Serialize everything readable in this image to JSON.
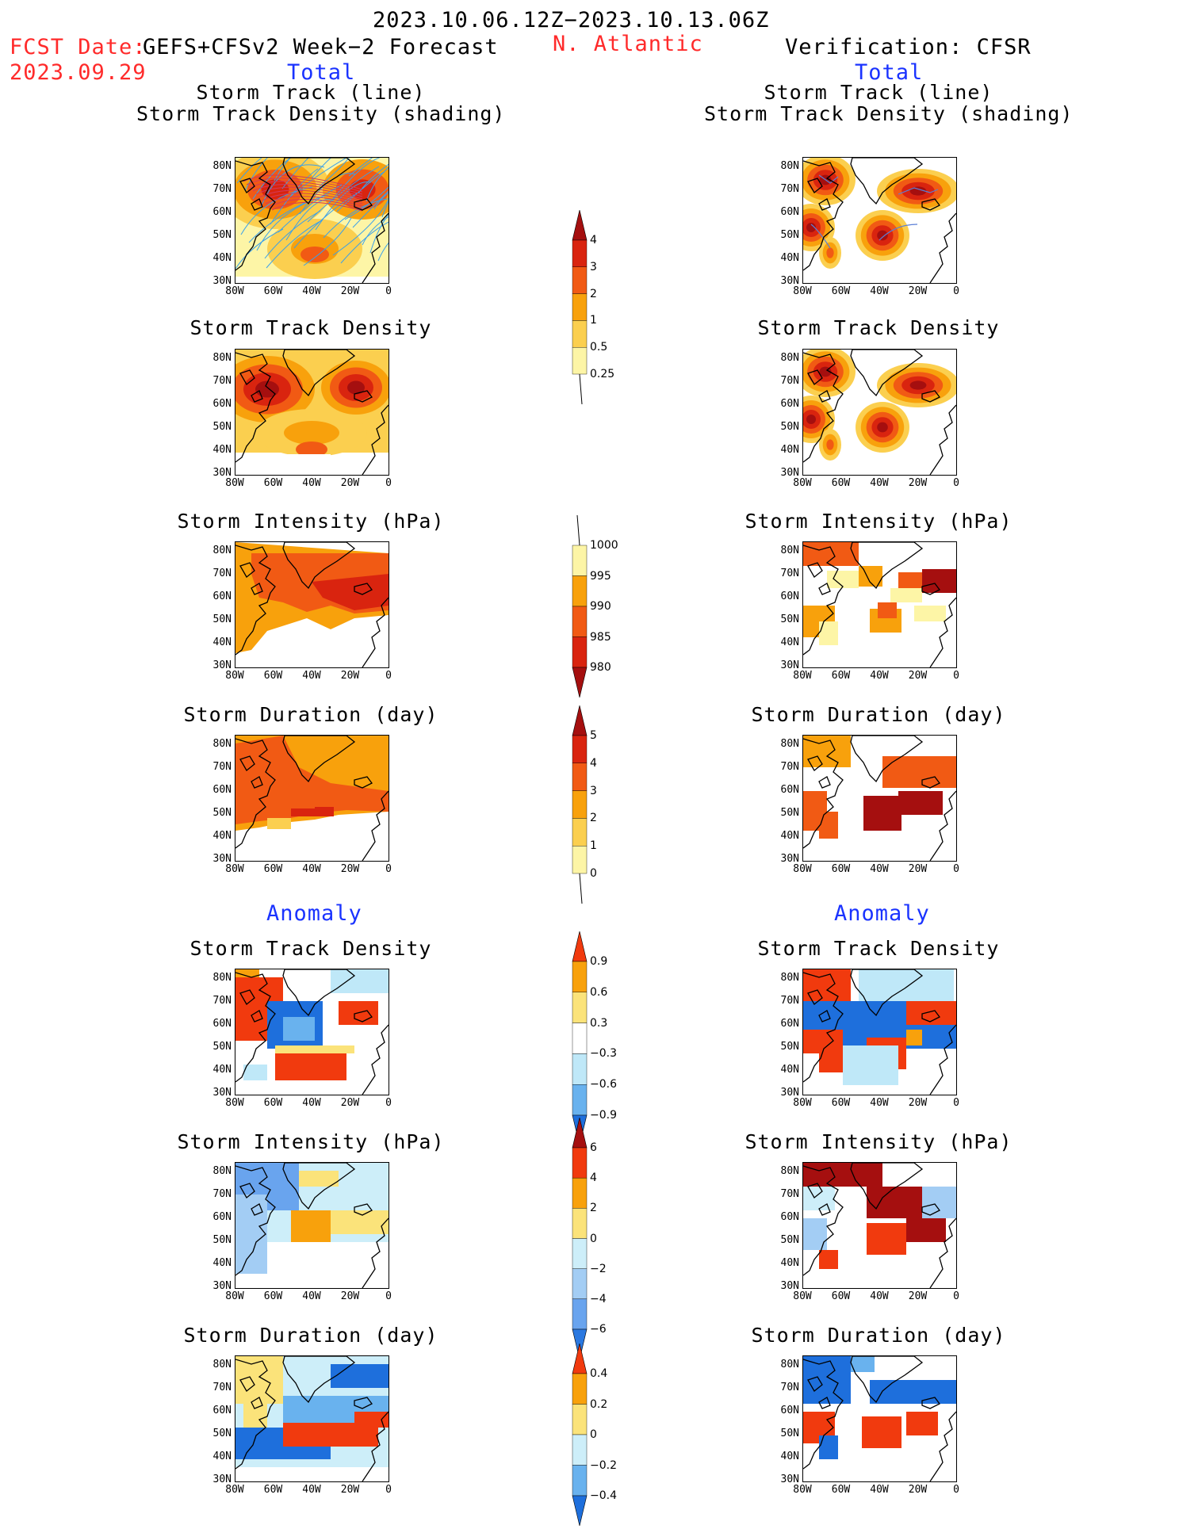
{
  "header": {
    "period": "2023.10.06.12Z−2023.10.13.06Z",
    "fcst_label": "FCST Date:",
    "model": "GEFS+CFSv2 Week−2 Forecast",
    "fcst_date": "2023.09.29",
    "region": "N. Atlantic",
    "verification": "Verification: CFSR"
  },
  "sections": {
    "total": "Total",
    "anomaly": "Anomaly"
  },
  "titles": {
    "track_line_1": "Storm Track (line)",
    "track_line_2": "Storm Track Density (shading)",
    "density": "Storm Track Density",
    "intensity": "Storm Intensity (hPa)",
    "duration": "Storm Duration (day)"
  },
  "axes": {
    "lat": [
      "80N",
      "70N",
      "60N",
      "50N",
      "40N",
      "30N"
    ],
    "lon": [
      "80W",
      "60W",
      "40W",
      "20W",
      "0"
    ]
  },
  "colorbars": {
    "density_total": {
      "labels": [
        "4",
        "3",
        "2",
        "1",
        "0.5",
        "0.25"
      ],
      "colors": [
        "#a50f0f",
        "#d9240f",
        "#f15a14",
        "#f8a10c",
        "#fbcf4f",
        "#fdf5a6"
      ]
    },
    "intensity_total": {
      "labels": [
        "1000",
        "995",
        "990",
        "985",
        "980"
      ],
      "colors": [
        "#fdf5a6",
        "#f8a10c",
        "#f15a14",
        "#d9240f",
        "#a50f0f"
      ]
    },
    "duration_total": {
      "labels": [
        "5",
        "4",
        "3",
        "2",
        "1",
        "0"
      ],
      "colors": [
        "#a50f0f",
        "#d9240f",
        "#f15a14",
        "#f8a10c",
        "#fbcf4f",
        "#fdf5a6"
      ]
    },
    "density_anom": {
      "labels": [
        "0.9",
        "0.6",
        "0.3",
        "−0.3",
        "−0.6",
        "−0.9"
      ],
      "colors": [
        "#f13a0e",
        "#f8a10c",
        "#fbe37a",
        "#ffffff",
        "#bfe8f8",
        "#69b2ee",
        "#1e6fdc"
      ]
    },
    "intensity_anom": {
      "labels": [
        "6",
        "4",
        "2",
        "0",
        "−2",
        "−4",
        "−6"
      ],
      "colors": [
        "#a50f0f",
        "#f13a0e",
        "#f8a10c",
        "#fbe37a",
        "#cdeef9",
        "#a3cdf4",
        "#69a4ee",
        "#2a78e0"
      ]
    },
    "duration_anom": {
      "labels": [
        "0.4",
        "0.2",
        "0",
        "−0.2",
        "−0.4"
      ],
      "colors": [
        "#f13a0e",
        "#f8a10c",
        "#fbe37a",
        "#cdeef9",
        "#69b2ee",
        "#1e6fdc"
      ]
    }
  }
}
